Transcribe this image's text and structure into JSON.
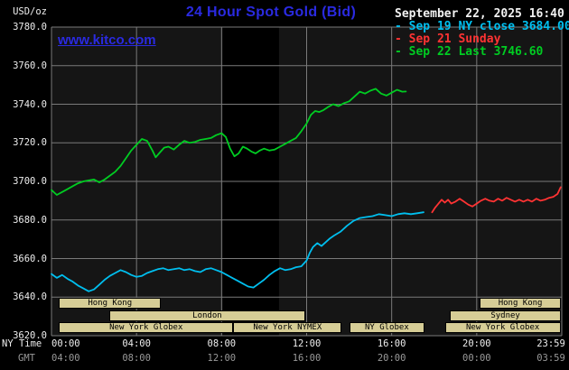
{
  "header": {
    "units": "USD/oz",
    "title": "24 Hour Spot Gold (Bid)",
    "watermark": "www.kitco.com",
    "datetime": "September 22, 2025 16:40",
    "legend_marker": "-",
    "legend": [
      {
        "id": "sep19",
        "text": "Sep 19 NY close 3684.00",
        "color": "#00bfef"
      },
      {
        "id": "sep21",
        "text": "Sep 21 Sunday",
        "color": "#ff3333"
      },
      {
        "id": "sep22",
        "text": "Sep 22 Last 3746.60",
        "color": "#00cc22"
      }
    ]
  },
  "axes": {
    "y_ticks": [
      "3780.0",
      "3760.0",
      "3740.0",
      "3720.0",
      "3700.0",
      "3680.0",
      "3660.0",
      "3640.0",
      "3620.0"
    ],
    "x_label_ny": "NY Time",
    "x_label_gmt": "GMT",
    "x_tick_hours": [
      0,
      4,
      8,
      12,
      16,
      20,
      23.983
    ],
    "x_ticks_ny": [
      "00:00",
      "04:00",
      "08:00",
      "12:00",
      "16:00",
      "20:00",
      "23:59"
    ],
    "x_ticks_gmt": [
      "04:00",
      "08:00",
      "12:00",
      "16:00",
      "20:00",
      "00:00",
      "03:59"
    ]
  },
  "sessions": [
    {
      "label": "Hong Kong",
      "row": 0,
      "start": 0.35,
      "end": 5.15
    },
    {
      "label": "Hong Kong",
      "row": 0,
      "start": 20.15,
      "end": 23.95
    },
    {
      "label": "London",
      "row": 1,
      "start": 2.7,
      "end": 11.95
    },
    {
      "label": "Sydney",
      "row": 1,
      "start": 18.75,
      "end": 23.95
    },
    {
      "label": "New York Globex",
      "row": 2,
      "start": 0.35,
      "end": 8.55
    },
    {
      "label": "New York NYMEX",
      "row": 2,
      "start": 8.55,
      "end": 13.65
    },
    {
      "label": "NY Globex",
      "row": 2,
      "start": 14.0,
      "end": 17.55
    },
    {
      "label": "New York Globex",
      "row": 2,
      "start": 18.5,
      "end": 23.95
    }
  ],
  "shading": [
    {
      "start": 8.05,
      "end": 10.7
    }
  ],
  "colors": {
    "background": "#000000",
    "plot_bg": "#151515",
    "shade": "#000000",
    "grid": "#7a7a7a",
    "brand_blue": "#2a2ae0",
    "session_bg": "#d6cd96",
    "text": "#eeeeee",
    "text_dim": "#999999"
  },
  "chart_data": {
    "type": "line",
    "title": "24 Hour Spot Gold (Bid)",
    "ylabel": "USD/oz",
    "ylim": [
      3620,
      3780
    ],
    "x_axis": "NY Time (hours 0-24)",
    "grid": true,
    "legend_position": "top-right",
    "series": [
      {
        "id": "sep19",
        "name": "Sep 19 NY close 3684.00",
        "color": "#00bfef",
        "points": [
          [
            0,
            3652
          ],
          [
            0.25,
            3650
          ],
          [
            0.5,
            3651.5
          ],
          [
            0.75,
            3649.5
          ],
          [
            1,
            3648
          ],
          [
            1.25,
            3646
          ],
          [
            1.5,
            3644.5
          ],
          [
            1.75,
            3643
          ],
          [
            2,
            3644
          ],
          [
            2.25,
            3646.5
          ],
          [
            2.5,
            3649
          ],
          [
            2.75,
            3651
          ],
          [
            3,
            3652.5
          ],
          [
            3.25,
            3654
          ],
          [
            3.5,
            3653
          ],
          [
            3.75,
            3651.5
          ],
          [
            4,
            3650.5
          ],
          [
            4.25,
            3651
          ],
          [
            4.5,
            3652.5
          ],
          [
            4.75,
            3653.5
          ],
          [
            5,
            3654.5
          ],
          [
            5.25,
            3655
          ],
          [
            5.5,
            3654
          ],
          [
            5.75,
            3654.5
          ],
          [
            6,
            3655
          ],
          [
            6.25,
            3654
          ],
          [
            6.5,
            3654.5
          ],
          [
            6.75,
            3653.5
          ],
          [
            7,
            3653
          ],
          [
            7.25,
            3654.5
          ],
          [
            7.5,
            3655
          ],
          [
            7.75,
            3654
          ],
          [
            8,
            3653
          ],
          [
            8.25,
            3651.5
          ],
          [
            8.5,
            3650
          ],
          [
            8.75,
            3648.5
          ],
          [
            9,
            3647
          ],
          [
            9.25,
            3645.5
          ],
          [
            9.5,
            3645
          ],
          [
            9.75,
            3647
          ],
          [
            10,
            3649
          ],
          [
            10.25,
            3651.5
          ],
          [
            10.5,
            3653.5
          ],
          [
            10.75,
            3655
          ],
          [
            11,
            3654
          ],
          [
            11.25,
            3654.5
          ],
          [
            11.5,
            3655.5
          ],
          [
            11.75,
            3656
          ],
          [
            12,
            3659
          ],
          [
            12.15,
            3663
          ],
          [
            12.3,
            3666
          ],
          [
            12.5,
            3668
          ],
          [
            12.7,
            3666.5
          ],
          [
            12.9,
            3668.5
          ],
          [
            13.1,
            3670.5
          ],
          [
            13.3,
            3672
          ],
          [
            13.6,
            3674
          ],
          [
            13.9,
            3677
          ],
          [
            14.2,
            3679.5
          ],
          [
            14.5,
            3681
          ],
          [
            14.8,
            3681.5
          ],
          [
            15.1,
            3682
          ],
          [
            15.4,
            3683
          ],
          [
            15.7,
            3682.5
          ],
          [
            16,
            3682
          ],
          [
            16.3,
            3683
          ],
          [
            16.6,
            3683.5
          ],
          [
            16.9,
            3683
          ],
          [
            17.2,
            3683.5
          ],
          [
            17.5,
            3684
          ]
        ]
      },
      {
        "id": "sep21",
        "name": "Sep 21 Sunday",
        "color": "#ff3333",
        "points": [
          [
            17.9,
            3684
          ],
          [
            18.05,
            3686.5
          ],
          [
            18.2,
            3688.5
          ],
          [
            18.35,
            3690.5
          ],
          [
            18.5,
            3689
          ],
          [
            18.65,
            3690.5
          ],
          [
            18.8,
            3688.5
          ],
          [
            19,
            3689.5
          ],
          [
            19.2,
            3691
          ],
          [
            19.4,
            3689.5
          ],
          [
            19.6,
            3688
          ],
          [
            19.8,
            3687
          ],
          [
            20,
            3688.5
          ],
          [
            20.2,
            3690
          ],
          [
            20.4,
            3691
          ],
          [
            20.6,
            3690
          ],
          [
            20.8,
            3689.5
          ],
          [
            21,
            3691
          ],
          [
            21.2,
            3690
          ],
          [
            21.4,
            3691.5
          ],
          [
            21.6,
            3690.5
          ],
          [
            21.8,
            3689.5
          ],
          [
            22,
            3690.5
          ],
          [
            22.2,
            3689.5
          ],
          [
            22.4,
            3690.5
          ],
          [
            22.6,
            3689.5
          ],
          [
            22.8,
            3691
          ],
          [
            23,
            3690
          ],
          [
            23.2,
            3690.5
          ],
          [
            23.4,
            3691.5
          ],
          [
            23.6,
            3692
          ],
          [
            23.8,
            3693.5
          ],
          [
            23.95,
            3697
          ]
        ]
      },
      {
        "id": "sep22",
        "name": "Sep 22 Last 3746.60",
        "color": "#00cc22",
        "points": [
          [
            0,
            3695.5
          ],
          [
            0.25,
            3693
          ],
          [
            0.5,
            3694.5
          ],
          [
            0.75,
            3696
          ],
          [
            1,
            3697.5
          ],
          [
            1.25,
            3699
          ],
          [
            1.5,
            3700
          ],
          [
            1.75,
            3700.5
          ],
          [
            2,
            3701
          ],
          [
            2.25,
            3699.5
          ],
          [
            2.5,
            3701
          ],
          [
            2.75,
            3703
          ],
          [
            3,
            3705
          ],
          [
            3.25,
            3708
          ],
          [
            3.5,
            3712
          ],
          [
            3.75,
            3716
          ],
          [
            4,
            3719
          ],
          [
            4.25,
            3722
          ],
          [
            4.5,
            3721
          ],
          [
            4.75,
            3716
          ],
          [
            4.9,
            3712.5
          ],
          [
            5.1,
            3715
          ],
          [
            5.3,
            3717.5
          ],
          [
            5.5,
            3718
          ],
          [
            5.75,
            3716.5
          ],
          [
            6,
            3719
          ],
          [
            6.25,
            3721
          ],
          [
            6.5,
            3720
          ],
          [
            6.75,
            3720.5
          ],
          [
            7,
            3721.5
          ],
          [
            7.25,
            3722
          ],
          [
            7.5,
            3722.5
          ],
          [
            7.75,
            3724
          ],
          [
            8,
            3725
          ],
          [
            8.2,
            3723
          ],
          [
            8.4,
            3717
          ],
          [
            8.6,
            3713
          ],
          [
            8.8,
            3714.5
          ],
          [
            9,
            3718
          ],
          [
            9.2,
            3717
          ],
          [
            9.4,
            3715.5
          ],
          [
            9.6,
            3714.5
          ],
          [
            9.8,
            3716
          ],
          [
            10,
            3717
          ],
          [
            10.25,
            3716
          ],
          [
            10.5,
            3716.5
          ],
          [
            10.75,
            3718
          ],
          [
            11,
            3719.5
          ],
          [
            11.25,
            3721
          ],
          [
            11.5,
            3722.5
          ],
          [
            11.75,
            3726
          ],
          [
            12,
            3730
          ],
          [
            12.2,
            3734.5
          ],
          [
            12.4,
            3736.5
          ],
          [
            12.6,
            3736
          ],
          [
            12.8,
            3737
          ],
          [
            13,
            3738.5
          ],
          [
            13.25,
            3740
          ],
          [
            13.5,
            3739
          ],
          [
            13.75,
            3740.5
          ],
          [
            14,
            3741.5
          ],
          [
            14.25,
            3744
          ],
          [
            14.5,
            3746.5
          ],
          [
            14.75,
            3745.5
          ],
          [
            15,
            3747
          ],
          [
            15.25,
            3748
          ],
          [
            15.5,
            3745.5
          ],
          [
            15.75,
            3744.5
          ],
          [
            16,
            3746
          ],
          [
            16.25,
            3747.5
          ],
          [
            16.5,
            3746.5
          ],
          [
            16.67,
            3746.6
          ]
        ]
      }
    ]
  }
}
